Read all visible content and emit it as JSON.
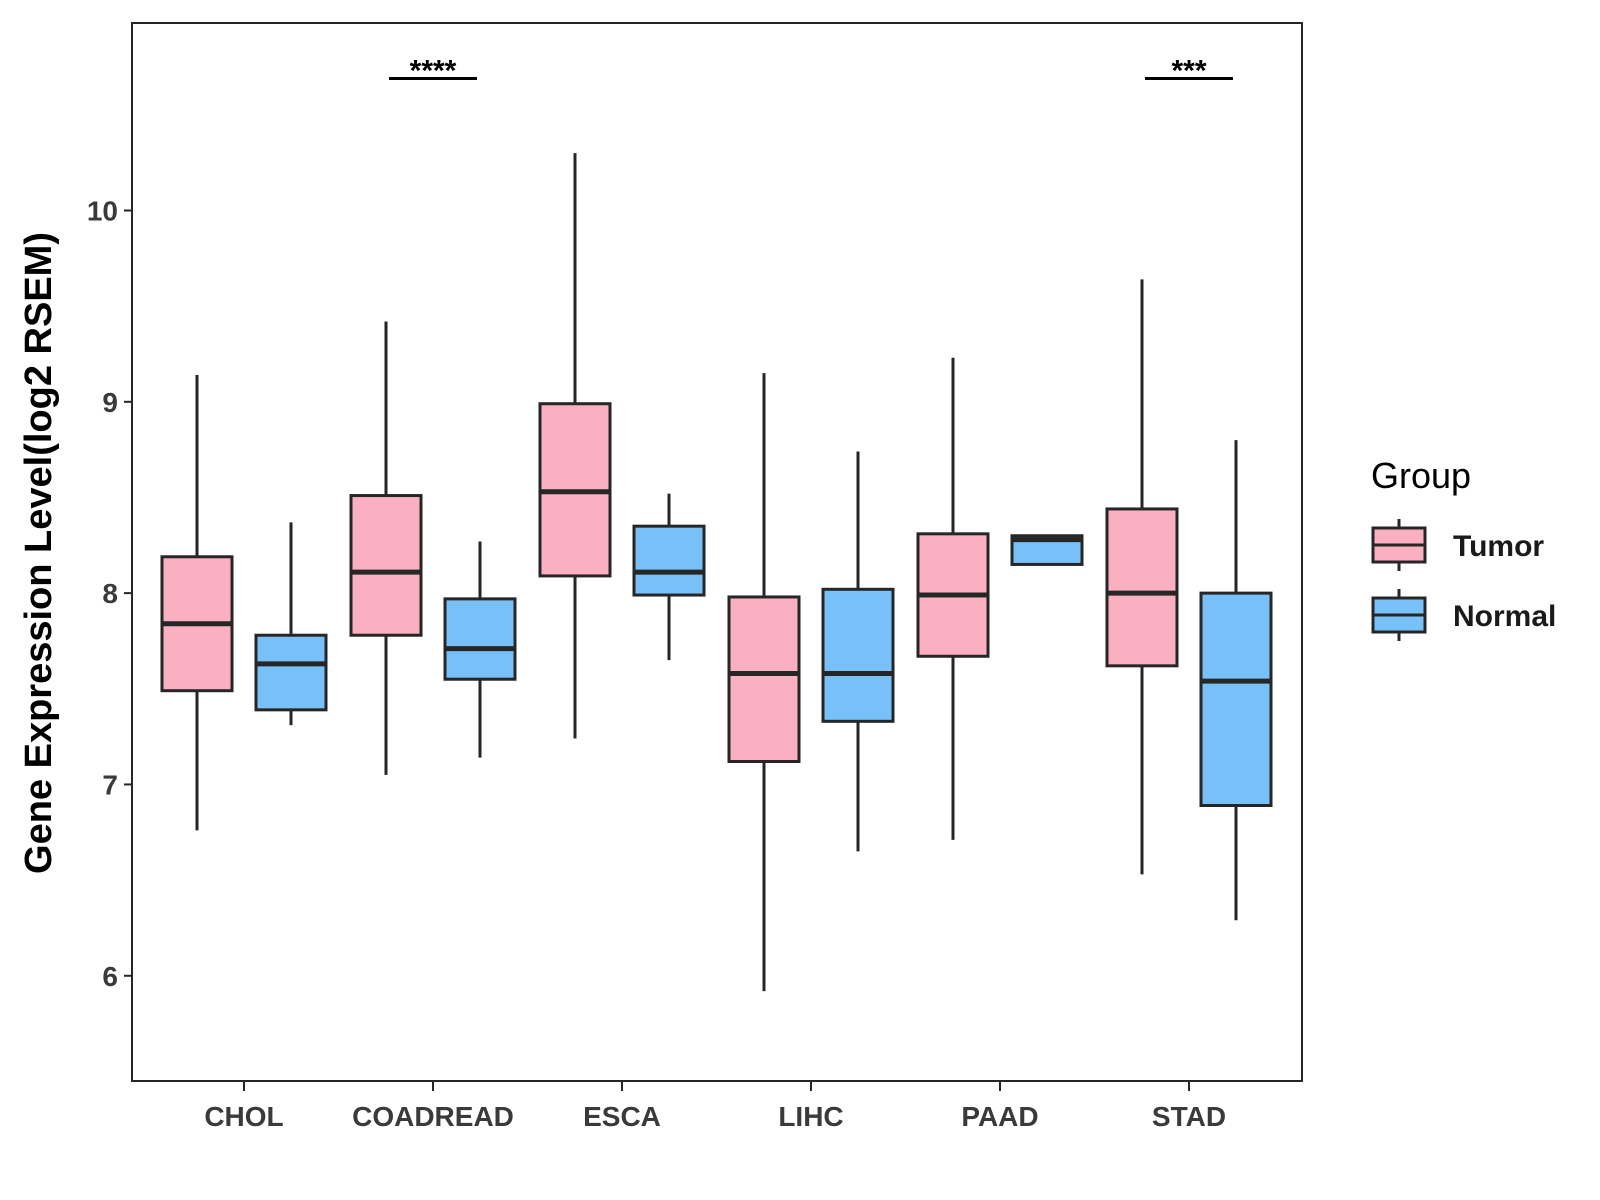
{
  "chart_data": {
    "type": "boxplot",
    "title": "",
    "xlabel": "",
    "ylabel": "Gene Expression Level(log2 RSEM)",
    "ylim": [
      5.45,
      10.98
    ],
    "yticks": [
      6,
      7,
      8,
      9,
      10
    ],
    "categories": [
      "CHOL",
      "COADREAD",
      "ESCA",
      "LIHC",
      "PAAD",
      "STAD"
    ],
    "legend": {
      "title": "Group",
      "position": "right"
    },
    "colors": {
      "Tumor": "#fbb0c2",
      "Normal": "#77c1f8",
      "stroke": "#262626"
    },
    "series": [
      {
        "name": "Tumor",
        "boxes": [
          {
            "category": "CHOL",
            "whisker_low": 6.76,
            "q1": 7.49,
            "median": 7.84,
            "q3": 8.19,
            "whisker_high": 9.14
          },
          {
            "category": "COADREAD",
            "whisker_low": 7.05,
            "q1": 7.78,
            "median": 8.11,
            "q3": 8.51,
            "whisker_high": 9.42
          },
          {
            "category": "ESCA",
            "whisker_low": 7.24,
            "q1": 8.09,
            "median": 8.53,
            "q3": 8.99,
            "whisker_high": 10.3
          },
          {
            "category": "LIHC",
            "whisker_low": 5.92,
            "q1": 7.12,
            "median": 7.58,
            "q3": 7.98,
            "whisker_high": 9.15
          },
          {
            "category": "PAAD",
            "whisker_low": 6.71,
            "q1": 7.67,
            "median": 7.99,
            "q3": 8.31,
            "whisker_high": 9.23
          },
          {
            "category": "STAD",
            "whisker_low": 6.53,
            "q1": 7.62,
            "median": 8.0,
            "q3": 8.44,
            "whisker_high": 9.64
          }
        ]
      },
      {
        "name": "Normal",
        "boxes": [
          {
            "category": "CHOL",
            "whisker_low": 7.31,
            "q1": 7.39,
            "median": 7.63,
            "q3": 7.78,
            "whisker_high": 8.37
          },
          {
            "category": "COADREAD",
            "whisker_low": 7.14,
            "q1": 7.55,
            "median": 7.71,
            "q3": 7.97,
            "whisker_high": 8.27
          },
          {
            "category": "ESCA",
            "whisker_low": 7.65,
            "q1": 7.99,
            "median": 8.11,
            "q3": 8.35,
            "whisker_high": 8.52
          },
          {
            "category": "LIHC",
            "whisker_low": 6.65,
            "q1": 7.33,
            "median": 7.58,
            "q3": 8.02,
            "whisker_high": 8.74
          },
          {
            "category": "PAAD",
            "whisker_low": 8.15,
            "q1": 8.15,
            "median": 8.28,
            "q3": 8.3,
            "whisker_high": 8.3
          },
          {
            "category": "STAD",
            "whisker_low": 6.29,
            "q1": 6.89,
            "median": 7.54,
            "q3": 8.0,
            "whisker_high": 8.8
          }
        ]
      }
    ],
    "annotations": [
      {
        "category": "COADREAD",
        "label": "****",
        "y": 10.69
      },
      {
        "category": "STAD",
        "label": "***",
        "y": 10.69
      }
    ]
  }
}
